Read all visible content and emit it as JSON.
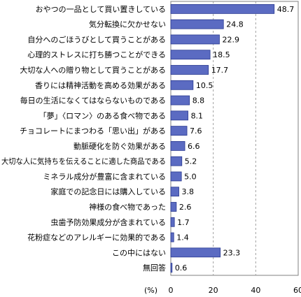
{
  "chart_data": {
    "type": "bar",
    "orientation": "horizontal",
    "categories": [
      "おやつの一品として買い置きしている",
      "気分転換に欠かせない",
      "自分へのごほうびとして買うことがある",
      "心理的ストレスに打ち勝つことができる",
      "大切な人への贈り物として買うことがある",
      "香りには精神活動を高める効果がある",
      "毎日の生活になくてはならないものである",
      "「夢」〈ロマン〉のある食べ物である",
      "チョコレートにまつわる「思い出」がある",
      "動脈硬化を防ぐ効果がある",
      "大切な人に気持ちを伝えることに適した商品である",
      "ミネラル成分が豊富に含まれている",
      "家庭での記念日には購入している",
      "神様の食べ物であった",
      "虫歯予防効果成分が含まれている",
      "花粉症などのアレルギーに効果的である",
      "この中にはない",
      "無回答"
    ],
    "values": [
      48.7,
      24.8,
      22.9,
      18.5,
      17.7,
      10.5,
      8.8,
      8.1,
      7.6,
      6.6,
      5.2,
      5.0,
      3.8,
      2.6,
      1.7,
      1.4,
      23.3,
      0.6
    ],
    "value_labels": [
      "48.7",
      "24.8",
      "22.9",
      "18.5",
      "17.7",
      "10.5",
      "8.8",
      "8.1",
      "7.6",
      "6.6",
      "5.2",
      "5.0",
      "3.8",
      "2.6",
      "1.7",
      "1.4",
      "23.3",
      "0.6"
    ],
    "xlim": [
      0,
      60
    ],
    "x_ticks": [
      "0",
      "20",
      "40",
      "60"
    ],
    "unit_label": "(%)",
    "grid": true,
    "bar_color": "#5b6bc2",
    "bar_border": "#2a3a90"
  }
}
